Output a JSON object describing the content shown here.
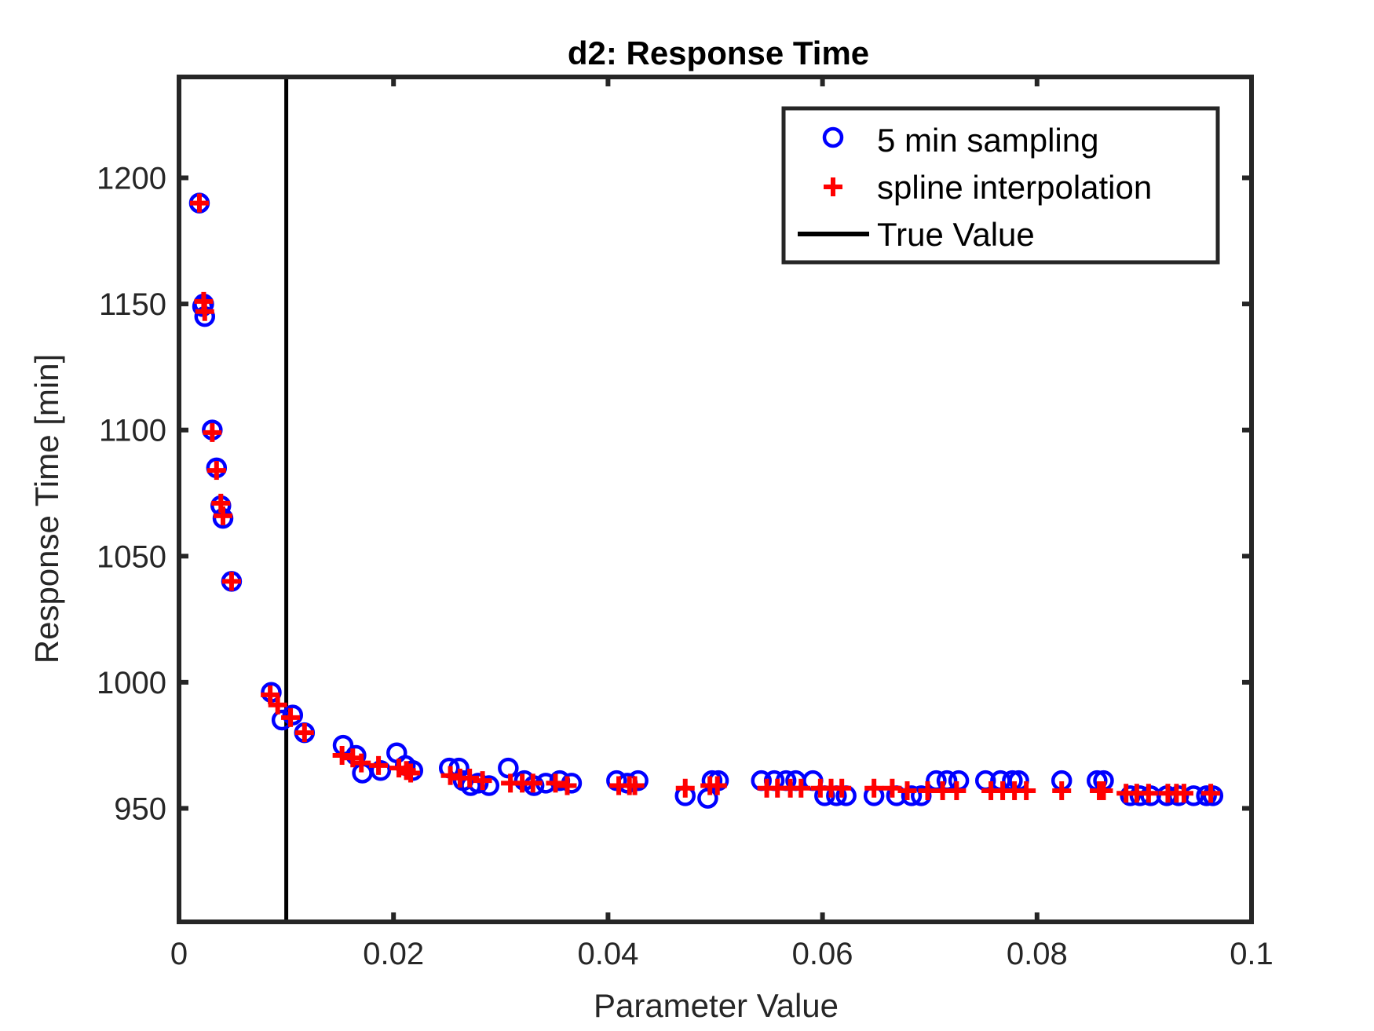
{
  "chart_data": {
    "type": "scatter",
    "title": "d2: Response Time",
    "xlabel": "Parameter Value",
    "ylabel": "Response Time [min]",
    "xlim": [
      0,
      0.1
    ],
    "ylim": [
      905,
      1240
    ],
    "x_ticks": [
      0,
      0.02,
      0.04,
      0.06,
      0.08,
      0.1
    ],
    "x_tick_labels": [
      "0",
      "0.02",
      "0.04",
      "0.06",
      "0.08",
      "0.1"
    ],
    "y_ticks": [
      950,
      1000,
      1050,
      1100,
      1150,
      1200
    ],
    "y_tick_labels": [
      "950",
      "1000",
      "1050",
      "1100",
      "1150",
      "1200"
    ],
    "grid": false,
    "legend_position": "top-right",
    "legend": {
      "entries": [
        "5 min sampling",
        "spline interpolation",
        "True Value"
      ]
    },
    "vertical_line": {
      "name": "True Value",
      "x": 0.01,
      "color": "#000000"
    },
    "series": [
      {
        "name": "5 min sampling",
        "marker": "circle",
        "color": "#0000ff",
        "points": [
          [
            0.0019,
            1190
          ],
          [
            0.0023,
            1150
          ],
          [
            0.0024,
            1145
          ],
          [
            0.0022,
            1149
          ],
          [
            0.0031,
            1100
          ],
          [
            0.0035,
            1085
          ],
          [
            0.0039,
            1070
          ],
          [
            0.0041,
            1065
          ],
          [
            0.0049,
            1040
          ],
          [
            0.0086,
            996
          ],
          [
            0.0096,
            985
          ],
          [
            0.0106,
            987
          ],
          [
            0.0117,
            980
          ],
          [
            0.0153,
            975
          ],
          [
            0.0165,
            971
          ],
          [
            0.0171,
            964
          ],
          [
            0.0188,
            965
          ],
          [
            0.0203,
            972
          ],
          [
            0.0211,
            967
          ],
          [
            0.0218,
            965
          ],
          [
            0.0252,
            966
          ],
          [
            0.0261,
            966
          ],
          [
            0.0265,
            961
          ],
          [
            0.0272,
            959
          ],
          [
            0.0279,
            960
          ],
          [
            0.0289,
            959
          ],
          [
            0.0307,
            966
          ],
          [
            0.0322,
            961
          ],
          [
            0.0331,
            959
          ],
          [
            0.0342,
            960
          ],
          [
            0.0355,
            961
          ],
          [
            0.0366,
            960
          ],
          [
            0.0408,
            961
          ],
          [
            0.0418,
            960
          ],
          [
            0.0428,
            961
          ],
          [
            0.0472,
            955
          ],
          [
            0.0493,
            954
          ],
          [
            0.0497,
            961
          ],
          [
            0.0503,
            961
          ],
          [
            0.0543,
            961
          ],
          [
            0.0555,
            961
          ],
          [
            0.0566,
            961
          ],
          [
            0.0575,
            961
          ],
          [
            0.0591,
            961
          ],
          [
            0.0602,
            955
          ],
          [
            0.0613,
            955
          ],
          [
            0.0622,
            955
          ],
          [
            0.0648,
            955
          ],
          [
            0.0669,
            955
          ],
          [
            0.0683,
            955
          ],
          [
            0.0692,
            955
          ],
          [
            0.0706,
            961
          ],
          [
            0.0716,
            961
          ],
          [
            0.0727,
            961
          ],
          [
            0.0752,
            961
          ],
          [
            0.0766,
            961
          ],
          [
            0.0777,
            961
          ],
          [
            0.0783,
            961
          ],
          [
            0.0823,
            961
          ],
          [
            0.0856,
            961
          ],
          [
            0.0862,
            961
          ],
          [
            0.0887,
            955
          ],
          [
            0.0896,
            955
          ],
          [
            0.0906,
            955
          ],
          [
            0.0921,
            955
          ],
          [
            0.0932,
            955
          ],
          [
            0.0946,
            955
          ],
          [
            0.0958,
            955
          ],
          [
            0.0964,
            955
          ]
        ]
      },
      {
        "name": "spline interpolation",
        "marker": "plus",
        "color": "#ff0000",
        "points": [
          [
            0.0019,
            1190
          ],
          [
            0.0023,
            1151
          ],
          [
            0.0024,
            1147
          ],
          [
            0.0031,
            1099
          ],
          [
            0.0035,
            1084
          ],
          [
            0.0039,
            1071
          ],
          [
            0.0041,
            1066
          ],
          [
            0.0049,
            1040
          ],
          [
            0.0085,
            995
          ],
          [
            0.0092,
            991
          ],
          [
            0.0104,
            986
          ],
          [
            0.0117,
            980
          ],
          [
            0.0152,
            971
          ],
          [
            0.0162,
            970
          ],
          [
            0.017,
            968
          ],
          [
            0.0186,
            967
          ],
          [
            0.0205,
            966
          ],
          [
            0.0212,
            965
          ],
          [
            0.0216,
            964
          ],
          [
            0.0253,
            963
          ],
          [
            0.0262,
            962
          ],
          [
            0.0271,
            962
          ],
          [
            0.0283,
            961
          ],
          [
            0.0309,
            960
          ],
          [
            0.032,
            960
          ],
          [
            0.033,
            960
          ],
          [
            0.0351,
            960
          ],
          [
            0.0362,
            959
          ],
          [
            0.041,
            959
          ],
          [
            0.042,
            959
          ],
          [
            0.0425,
            959
          ],
          [
            0.0472,
            958
          ],
          [
            0.0495,
            959
          ],
          [
            0.0502,
            959
          ],
          [
            0.0548,
            958
          ],
          [
            0.0558,
            958
          ],
          [
            0.057,
            958
          ],
          [
            0.058,
            958
          ],
          [
            0.0598,
            958
          ],
          [
            0.0608,
            958
          ],
          [
            0.0618,
            958
          ],
          [
            0.0648,
            958
          ],
          [
            0.0665,
            958
          ],
          [
            0.0679,
            957
          ],
          [
            0.0698,
            957
          ],
          [
            0.0712,
            957
          ],
          [
            0.0725,
            957
          ],
          [
            0.0757,
            957
          ],
          [
            0.0768,
            957
          ],
          [
            0.0779,
            957
          ],
          [
            0.079,
            957
          ],
          [
            0.0823,
            957
          ],
          [
            0.0858,
            957
          ],
          [
            0.0862,
            957
          ],
          [
            0.0883,
            956
          ],
          [
            0.0893,
            956
          ],
          [
            0.0904,
            956
          ],
          [
            0.0922,
            956
          ],
          [
            0.093,
            956
          ],
          [
            0.0937,
            956
          ],
          [
            0.0962,
            956
          ]
        ]
      }
    ]
  }
}
